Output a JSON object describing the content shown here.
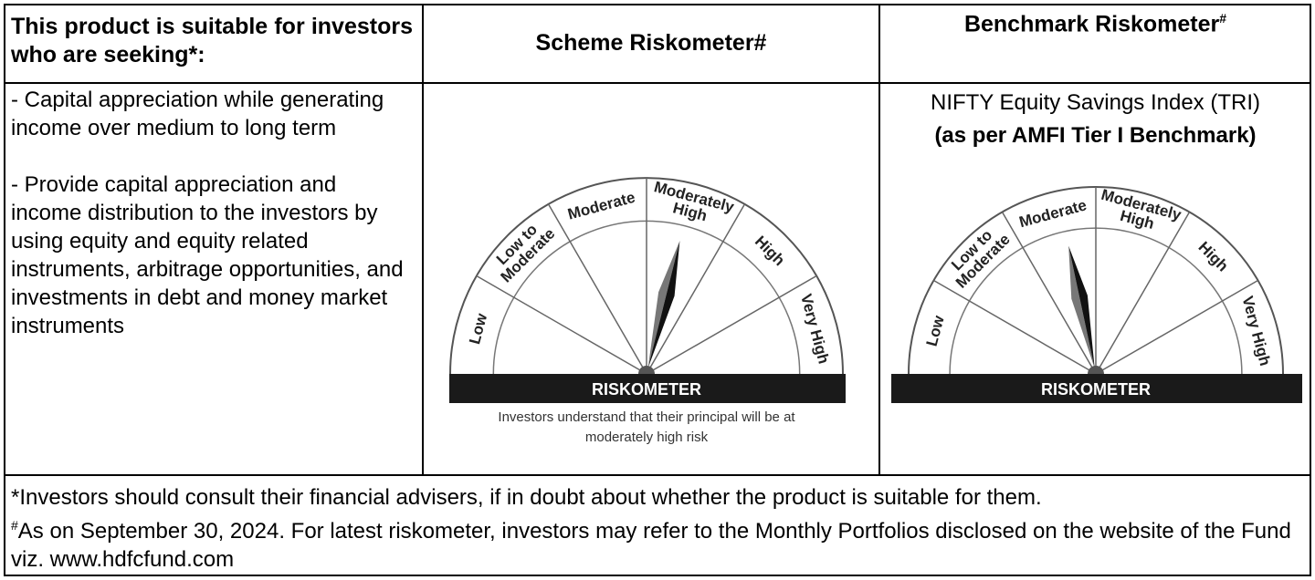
{
  "table": {
    "header": {
      "suitability": "This product is suitable for investors who are seeking*:",
      "scheme": "Scheme Riskometer#",
      "benchmark": {
        "text": "Benchmark Riskometer",
        "superscript": "#"
      }
    },
    "suitability": [
      "- Capital appreciation while generating income over medium to long term",
      "- Provide capital appreciation and income distribution to the investors by using equity and equity related instruments, arbitrage opportunities, and investments in debt and money market instruments"
    ],
    "scheme_riskometer": {
      "levels": [
        [
          "Low"
        ],
        [
          "Low to",
          "Moderate"
        ],
        [
          "Moderate"
        ],
        [
          "Moderately",
          "High"
        ],
        [
          "High"
        ],
        [
          "Very High"
        ]
      ],
      "title": "RISKOMETER",
      "caption": [
        "Investors understand that their principal will be at",
        "moderately high risk"
      ]
    },
    "benchmark_riskometer": {
      "index": "NIFTY Equity Savings Index (TRI)",
      "note": "(as per AMFI Tier I Benchmark)",
      "levels": [
        [
          "Low"
        ],
        [
          "Low to",
          "Moderate"
        ],
        [
          "Moderate"
        ],
        [
          "Moderately",
          "High"
        ],
        [
          "High"
        ],
        [
          "Very High"
        ]
      ],
      "title": "RISKOMETER"
    },
    "footer": {
      "note1": "*Investors should consult their financial advisers, if in doubt about whether the product is suitable for them.",
      "note2": {
        "superscript": "#",
        "text": "As on September 30, 2024. For latest riskometer, investors may refer to the Monthly Portfolios disclosed on the website of the Fund viz. www.hdfcfund.com"
      }
    }
  }
}
